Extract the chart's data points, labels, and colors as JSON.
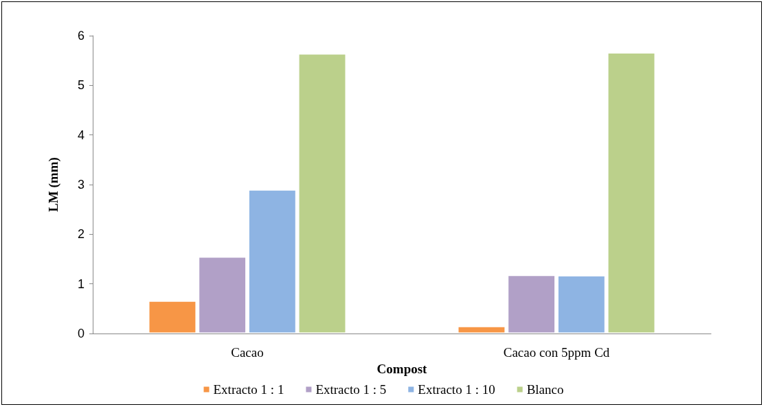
{
  "chart_data": {
    "type": "bar",
    "xlabel": "Compost",
    "ylabel": "LM (mm)",
    "categories": [
      "Cacao",
      "Cacao con 5ppm Cd"
    ],
    "series": [
      {
        "name": "Extracto 1 : 1",
        "color": "#f79646",
        "values": [
          0.66,
          0.15
        ]
      },
      {
        "name": "Extracto 1 : 5",
        "color": "#b1a0c7",
        "values": [
          1.55,
          1.18
        ]
      },
      {
        "name": "Extracto 1 : 10",
        "color": "#8eb4e3",
        "values": [
          2.9,
          1.17
        ]
      },
      {
        "name": "Blanco",
        "color": "#bbd08b",
        "values": [
          5.64,
          5.66
        ]
      }
    ],
    "ylim": [
      0,
      6
    ],
    "yticks": [
      0,
      1,
      2,
      3,
      4,
      5,
      6
    ],
    "grid": false,
    "legend": "bottom"
  }
}
